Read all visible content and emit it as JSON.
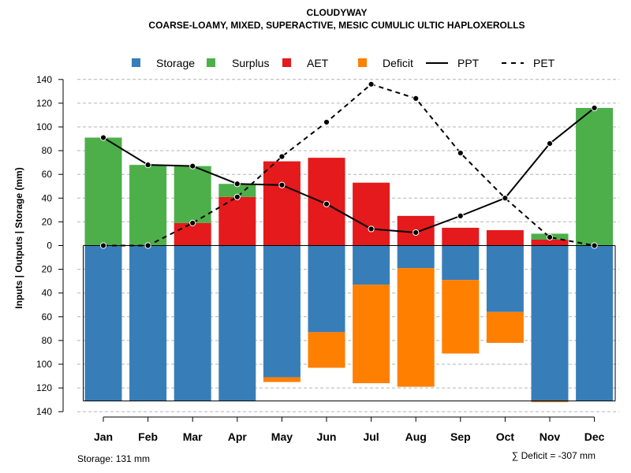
{
  "chart_data": {
    "type": "bar",
    "title": "CLOUDYWAY",
    "subtitle": "COARSE-LOAMY, MIXED, SUPERACTIVE, MESIC CUMULIC ULTIC HAPLOXEROLLS",
    "ylabel": "Inputs | Outputs | Storage    (mm)",
    "ylim": [
      -140,
      140
    ],
    "yticks": [
      140,
      120,
      100,
      80,
      60,
      40,
      20,
      0,
      -20,
      -40,
      -60,
      -80,
      -100,
      -120,
      -140
    ],
    "ytick_labels": [
      "140",
      "120",
      "100",
      "80",
      "60",
      "40",
      "20",
      "0",
      "20",
      "40",
      "60",
      "80",
      "100",
      "120",
      "140"
    ],
    "categories": [
      "Jan",
      "Feb",
      "Mar",
      "Apr",
      "May",
      "Jun",
      "Jul",
      "Aug",
      "Sep",
      "Oct",
      "Nov",
      "Dec"
    ],
    "storage_capacity": 131,
    "series": [
      {
        "name": "Storage",
        "color": "#377EB8",
        "kind": "bar-below",
        "values": [
          131,
          131,
          131,
          131,
          111,
          73,
          33,
          19,
          29,
          56,
          131,
          131
        ]
      },
      {
        "name": "Surplus",
        "color": "#4DAF4A",
        "kind": "bar-above-stack",
        "values": [
          91,
          68,
          48,
          11,
          0,
          0,
          0,
          0,
          0,
          0,
          5,
          116
        ]
      },
      {
        "name": "AET",
        "color": "#E41A1C",
        "kind": "bar-above-base",
        "values": [
          0,
          0,
          19,
          41,
          71,
          74,
          53,
          25,
          15,
          13,
          5,
          0
        ]
      },
      {
        "name": "Deficit",
        "color": "#FF7F00",
        "kind": "bar-below-stack",
        "values": [
          0,
          0,
          0,
          0,
          4,
          30,
          83,
          100,
          62,
          26,
          1,
          0
        ]
      },
      {
        "name": "PPT",
        "color": "#000000",
        "kind": "line-solid",
        "values": [
          91,
          68,
          67,
          52,
          51,
          35,
          14,
          11,
          25,
          40,
          86,
          116
        ]
      },
      {
        "name": "PET",
        "color": "#000000",
        "kind": "line-dashed",
        "values": [
          0,
          0,
          19,
          41,
          75,
          104,
          136,
          124,
          78,
          40,
          7,
          0
        ]
      }
    ],
    "legend_position": "top",
    "grid": true,
    "footer_left": "Storage: 131 mm",
    "footer_right": "∑ Deficit = -307 mm"
  }
}
